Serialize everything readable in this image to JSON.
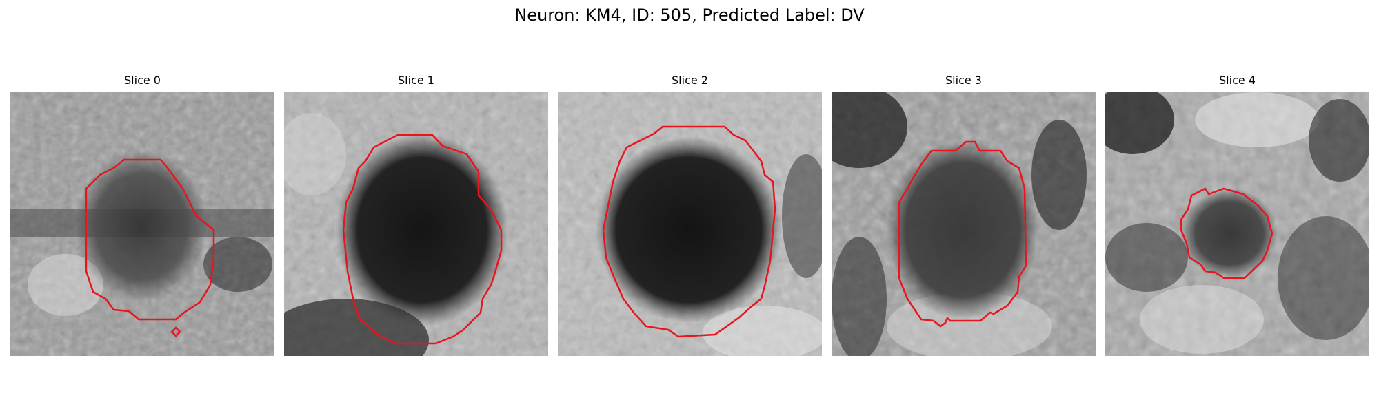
{
  "figure": {
    "title": "Neuron: KM4, ID: 505, Predicted Label: DV"
  },
  "colors": {
    "contour": "#e8141e",
    "background": "#ffffff",
    "text": "#000000"
  },
  "panels": [
    {
      "title": "Slice 0"
    },
    {
      "title": "Slice 1"
    },
    {
      "title": "Slice 2"
    },
    {
      "title": "Slice 3"
    },
    {
      "title": "Slice 4"
    }
  ]
}
